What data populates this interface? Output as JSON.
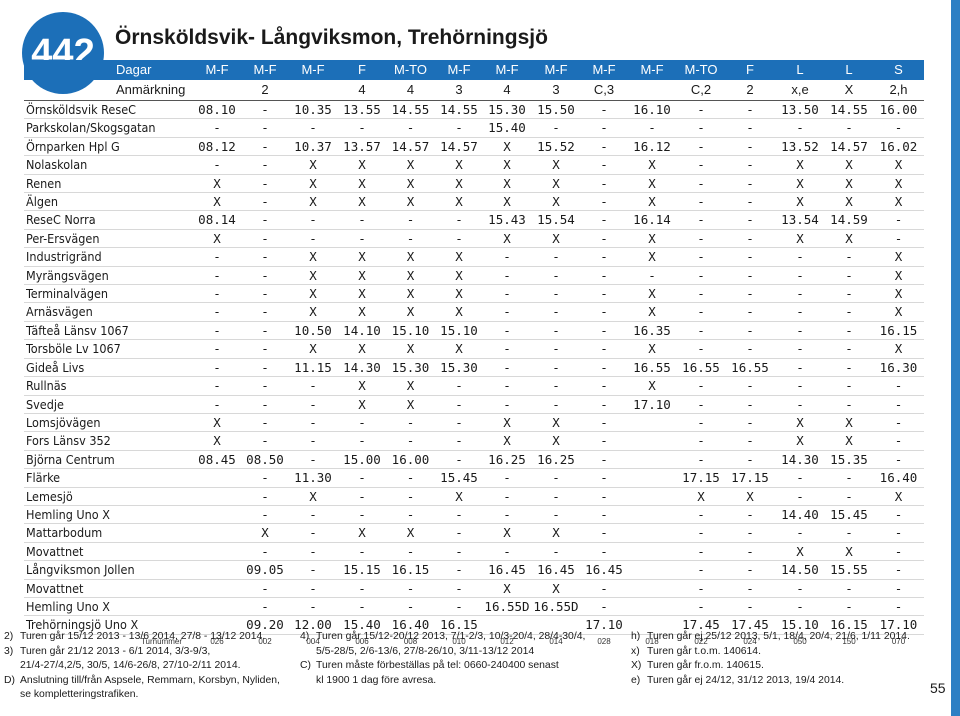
{
  "route_number": "442",
  "title": "Örnsköldsvik- Långviksmon, Trehörningsjö",
  "header": {
    "days_label": "Dagar",
    "days": [
      "M-F",
      "M-F",
      "M-F",
      "F",
      "M-TO",
      "M-F",
      "M-F",
      "M-F",
      "M-F",
      "M-F",
      "M-TO",
      "F",
      "L",
      "L",
      "S"
    ],
    "remark_label": "Anmärkning",
    "remarks": [
      "",
      "2",
      "",
      "4",
      "4",
      "3",
      "4",
      "3",
      "C,3",
      "",
      "C,2",
      "2",
      "x,e",
      "X",
      "2,h"
    ]
  },
  "stops": [
    {
      "name": "Örnsköldsvik ReseC",
      "times": [
        "08.10",
        "-",
        "10.35",
        "13.55",
        "14.55",
        "14.55",
        "15.30",
        "15.50",
        "-",
        "16.10",
        "-",
        "-",
        "13.50",
        "14.55",
        "16.00"
      ]
    },
    {
      "name": "Parkskolan/Skogsgatan",
      "times": [
        "-",
        "-",
        "-",
        "-",
        "-",
        "-",
        "15.40",
        "-",
        "-",
        "-",
        "-",
        "-",
        "-",
        "-",
        "-"
      ]
    },
    {
      "name": "Örnparken Hpl G",
      "times": [
        "08.12",
        "-",
        "10.37",
        "13.57",
        "14.57",
        "14.57",
        "X",
        "15.52",
        "-",
        "16.12",
        "-",
        "-",
        "13.52",
        "14.57",
        "16.02"
      ]
    },
    {
      "name": "Nolaskolan",
      "times": [
        "-",
        "-",
        "X",
        "X",
        "X",
        "X",
        "X",
        "X",
        "-",
        "X",
        "-",
        "-",
        "X",
        "X",
        "X"
      ]
    },
    {
      "name": "Renen",
      "times": [
        "X",
        "-",
        "X",
        "X",
        "X",
        "X",
        "X",
        "X",
        "-",
        "X",
        "-",
        "-",
        "X",
        "X",
        "X"
      ]
    },
    {
      "name": "Älgen",
      "times": [
        "X",
        "-",
        "X",
        "X",
        "X",
        "X",
        "X",
        "X",
        "-",
        "X",
        "-",
        "-",
        "X",
        "X",
        "X"
      ]
    },
    {
      "name": "ReseC Norra",
      "times": [
        "08.14",
        "-",
        "-",
        "-",
        "-",
        "-",
        "15.43",
        "15.54",
        "-",
        "16.14",
        "-",
        "-",
        "13.54",
        "14.59",
        "-"
      ]
    },
    {
      "name": "Per-Ersvägen",
      "times": [
        "X",
        "-",
        "-",
        "-",
        "-",
        "-",
        "X",
        "X",
        "-",
        "X",
        "-",
        "-",
        "X",
        "X",
        "-"
      ]
    },
    {
      "name": "Industrigränd",
      "times": [
        "-",
        "-",
        "X",
        "X",
        "X",
        "X",
        "-",
        "-",
        "-",
        "X",
        "-",
        "-",
        "-",
        "-",
        "X"
      ]
    },
    {
      "name": "Myrängsvägen",
      "times": [
        "-",
        "-",
        "X",
        "X",
        "X",
        "X",
        "-",
        "-",
        "-",
        "-",
        "-",
        "-",
        "-",
        "-",
        "X"
      ]
    },
    {
      "name": "Terminalvägen",
      "times": [
        "-",
        "-",
        "X",
        "X",
        "X",
        "X",
        "-",
        "-",
        "-",
        "X",
        "-",
        "-",
        "-",
        "-",
        "X"
      ]
    },
    {
      "name": "Arnäsvägen",
      "times": [
        "-",
        "-",
        "X",
        "X",
        "X",
        "X",
        "-",
        "-",
        "-",
        "X",
        "-",
        "-",
        "-",
        "-",
        "X"
      ]
    },
    {
      "name": "Täfteå Länsv 1067",
      "times": [
        "-",
        "-",
        "10.50",
        "14.10",
        "15.10",
        "15.10",
        "-",
        "-",
        "-",
        "16.35",
        "-",
        "-",
        "-",
        "-",
        "16.15"
      ]
    },
    {
      "name": "Torsböle Lv 1067",
      "times": [
        "-",
        "-",
        "X",
        "X",
        "X",
        "X",
        "-",
        "-",
        "-",
        "X",
        "-",
        "-",
        "-",
        "-",
        "X"
      ]
    },
    {
      "name": "Gideå Livs",
      "times": [
        "-",
        "-",
        "11.15",
        "14.30",
        "15.30",
        "15.30",
        "-",
        "-",
        "-",
        "16.55",
        "16.55",
        "16.55",
        "-",
        "-",
        "16.30"
      ]
    },
    {
      "name": "Rullnäs",
      "times": [
        "-",
        "-",
        "-",
        "X",
        "X",
        "-",
        "-",
        "-",
        "-",
        "X",
        "-",
        "-",
        "-",
        "-",
        "-"
      ]
    },
    {
      "name": "Svedje",
      "times": [
        "-",
        "-",
        "-",
        "X",
        "X",
        "-",
        "-",
        "-",
        "-",
        "17.10",
        "-",
        "-",
        "-",
        "-",
        "-"
      ]
    },
    {
      "name": "Lomsjövägen",
      "times": [
        "X",
        "-",
        "-",
        "-",
        "-",
        "-",
        "X",
        "X",
        "-",
        "",
        "-",
        "-",
        "X",
        "X",
        "-"
      ]
    },
    {
      "name": "Fors Länsv 352",
      "times": [
        "X",
        "-",
        "-",
        "-",
        "-",
        "-",
        "X",
        "X",
        "-",
        "",
        "-",
        "-",
        "X",
        "X",
        "-"
      ]
    },
    {
      "name": "Björna Centrum",
      "times": [
        "08.45",
        "08.50",
        "-",
        "15.00",
        "16.00",
        "-",
        "16.25",
        "16.25",
        "-",
        "",
        "-",
        "-",
        "14.30",
        "15.35",
        "-"
      ]
    },
    {
      "name": "Flärke",
      "times": [
        "",
        "-",
        "11.30",
        "-",
        "-",
        "15.45",
        "-",
        "-",
        "-",
        "",
        "17.15",
        "17.15",
        "-",
        "-",
        "16.40"
      ]
    },
    {
      "name": "Lemesjö",
      "times": [
        "",
        "-",
        "X",
        "-",
        "-",
        "X",
        "-",
        "-",
        "-",
        "",
        "X",
        "X",
        "-",
        "-",
        "X"
      ]
    },
    {
      "name": "Hemling Uno X",
      "times": [
        "",
        "-",
        "-",
        "-",
        "-",
        "-",
        "-",
        "-",
        "-",
        "",
        "-",
        "-",
        "14.40",
        "15.45",
        "-"
      ]
    },
    {
      "name": "Mattarbodum",
      "times": [
        "",
        "X",
        "-",
        "X",
        "X",
        "-",
        "X",
        "X",
        "-",
        "",
        "-",
        "-",
        "-",
        "-",
        "-"
      ]
    },
    {
      "name": "Movattnet",
      "times": [
        "",
        "-",
        "-",
        "-",
        "-",
        "-",
        "-",
        "-",
        "-",
        "",
        "-",
        "-",
        "X",
        "X",
        "-"
      ]
    },
    {
      "name": "Långviksmon Jollen",
      "times": [
        "",
        "09.05",
        "-",
        "15.15",
        "16.15",
        "-",
        "16.45",
        "16.45",
        "16.45",
        "",
        "-",
        "-",
        "14.50",
        "15.55",
        "-"
      ]
    },
    {
      "name": "Movattnet",
      "times": [
        "",
        "-",
        "-",
        "-",
        "-",
        "-",
        "X",
        "X",
        "-",
        "",
        "-",
        "-",
        "-",
        "-",
        "-"
      ]
    },
    {
      "name": "Hemling Uno X",
      "times": [
        "",
        "-",
        "-",
        "-",
        "-",
        "-",
        "16.55D",
        "16.55D",
        "-",
        "",
        "-",
        "-",
        "-",
        "-",
        "-"
      ]
    },
    {
      "name": "Trehörningsjö Uno X",
      "times": [
        "",
        "09.20",
        "12.00",
        "15.40",
        "16.40",
        "16.15",
        "",
        "",
        "17.10",
        "",
        "17.45",
        "17.45",
        "15.10",
        "16.15",
        "17.10"
      ]
    }
  ],
  "turnummer": {
    "label": "Turnummer",
    "values": [
      "026",
      "002",
      "004",
      "006",
      "008",
      "010",
      "012",
      "014",
      "028",
      "018",
      "022",
      "024",
      "050",
      "150",
      "070"
    ]
  },
  "footnotes": {
    "col1": [
      {
        "key": "2)",
        "lines": [
          "Turen går 15/12 2013 - 13/6 2014, 27/8 - 13/12 2014."
        ]
      },
      {
        "key": "3)",
        "lines": [
          "Turen går 21/12 2013 - 6/1 2014, 3/3-9/3,",
          "21/4-27/4,2/5, 30/5, 14/6-26/8, 27/10-2/11 2014."
        ]
      },
      {
        "key": "D)",
        "lines": [
          "Anslutning till/från Aspsele, Remmarn, Korsbyn, Nyliden,",
          "se kompletteringstrafiken."
        ]
      }
    ],
    "col2": [
      {
        "key": "4)",
        "lines": [
          "Turen går 15/12-20/12 2013, 7/1-2/3, 10/3-20/4, 28/4-30/4,",
          "5/5-28/5, 2/6-13/6, 27/8-26/10, 3/11-13/12 2014"
        ]
      },
      {
        "key": "C)",
        "lines": [
          "Turen måste förbeställas på tel: 0660-240400 senast",
          "kl 1900 1 dag före avresa."
        ]
      }
    ],
    "col3": [
      {
        "key": "h)",
        "lines": [
          "Turen går ej 25/12 2013, 5/1, 18/4, 20/4, 21/6, 1/11 2014."
        ]
      },
      {
        "key": "x)",
        "lines": [
          "Turen går t.o.m. 140614."
        ]
      },
      {
        "key": "X)",
        "lines": [
          "Turen går fr.o.m. 140615."
        ]
      },
      {
        "key": "e)",
        "lines": [
          "Turen går ej 24/12, 31/12 2013, 19/4 2014."
        ]
      }
    ]
  },
  "page_number": "55",
  "colors": {
    "brand_blue": "#1c6fb8",
    "accent_bar": "#2d7fc4"
  }
}
